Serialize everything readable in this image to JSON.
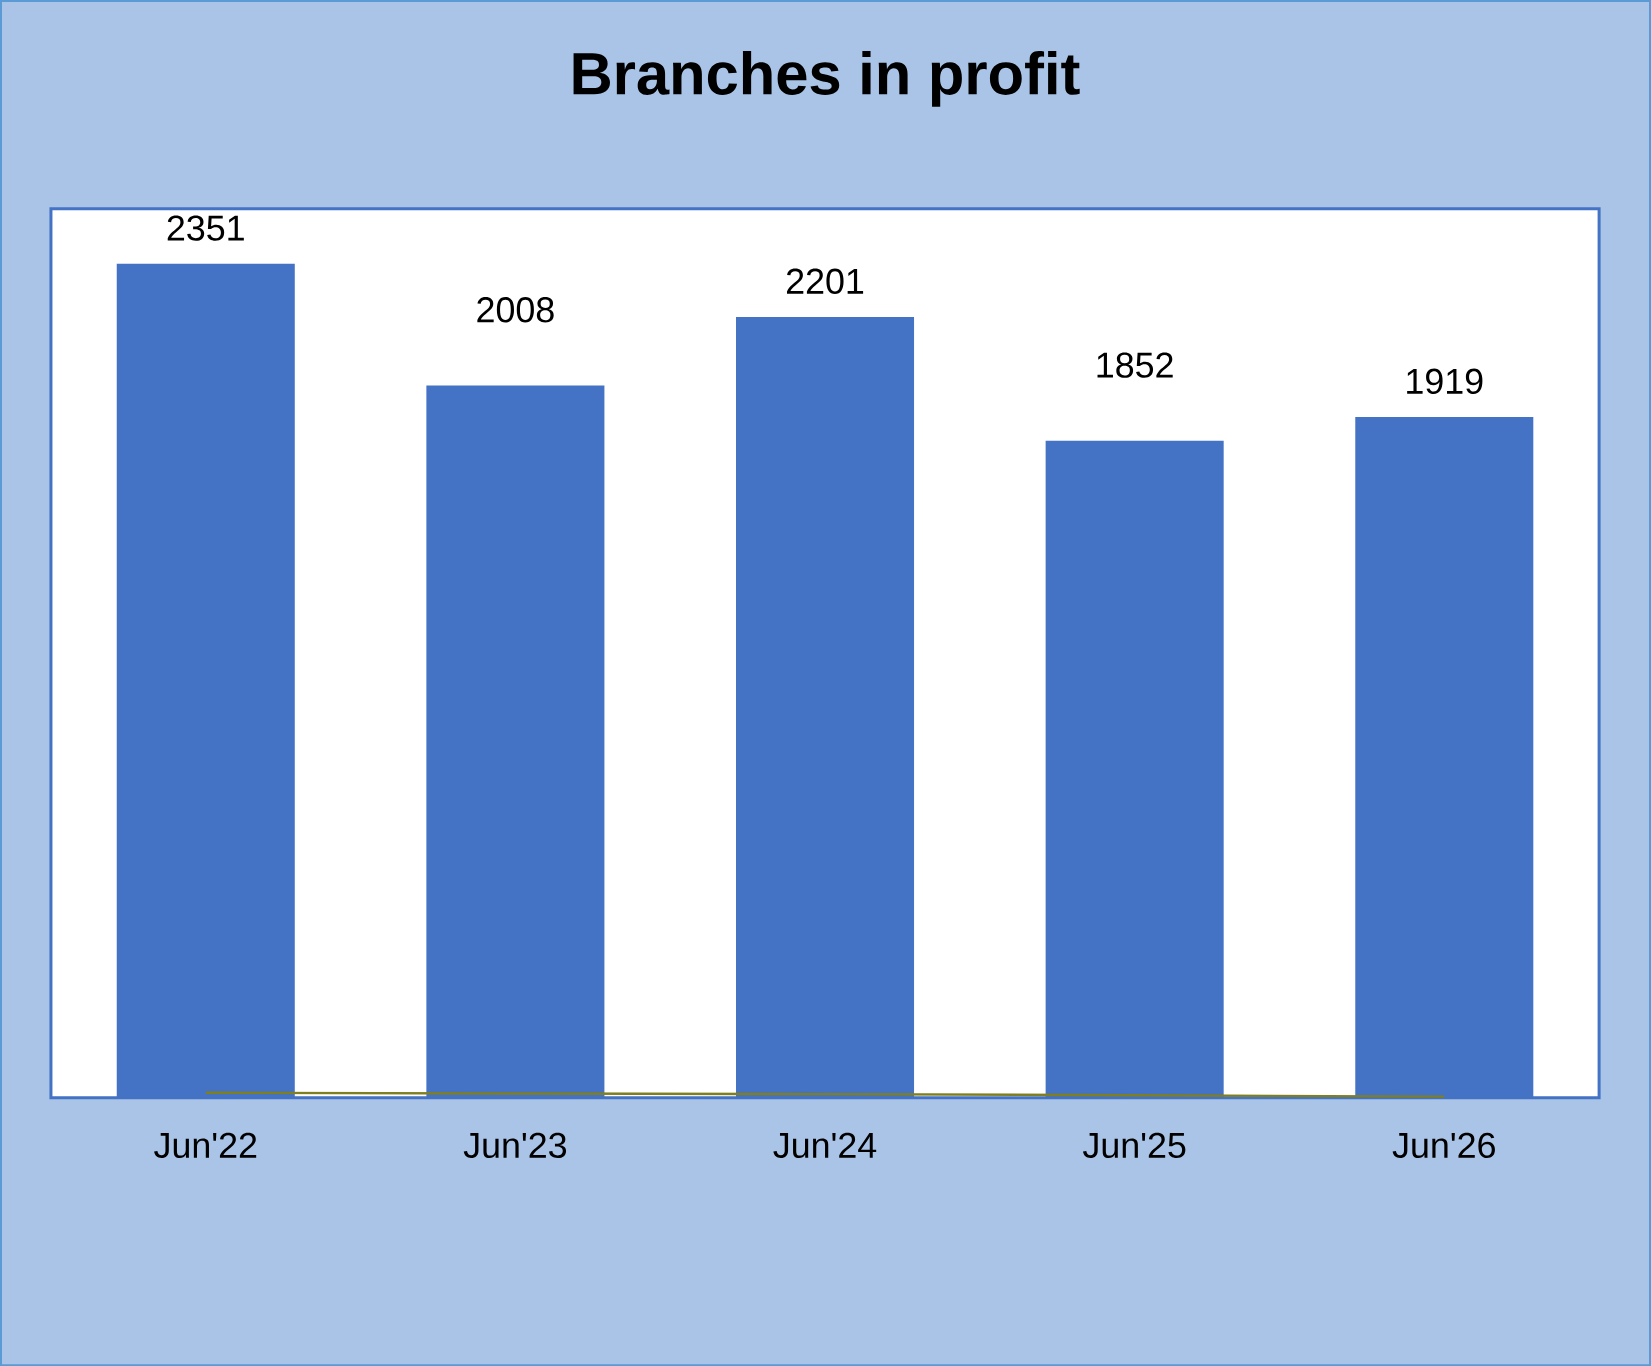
{
  "chart_data": {
    "type": "bar",
    "title": "Branches in profit",
    "categories": [
      "Jun'22",
      "Jun'23",
      "Jun'24",
      "Jun'25",
      "Jun'26"
    ],
    "series": [
      {
        "color": "#4472c4",
        "values": [
          2351,
          2008,
          2201,
          1852,
          1919
        ],
        "value_labels": [
          "2351",
          "2008",
          "2201",
          "1852",
          "1919"
        ]
      },
      {
        "type": "line",
        "color": "#7f7f20",
        "values": [
          14,
          12,
          10,
          7,
          3
        ]
      }
    ],
    "grid": false
  }
}
